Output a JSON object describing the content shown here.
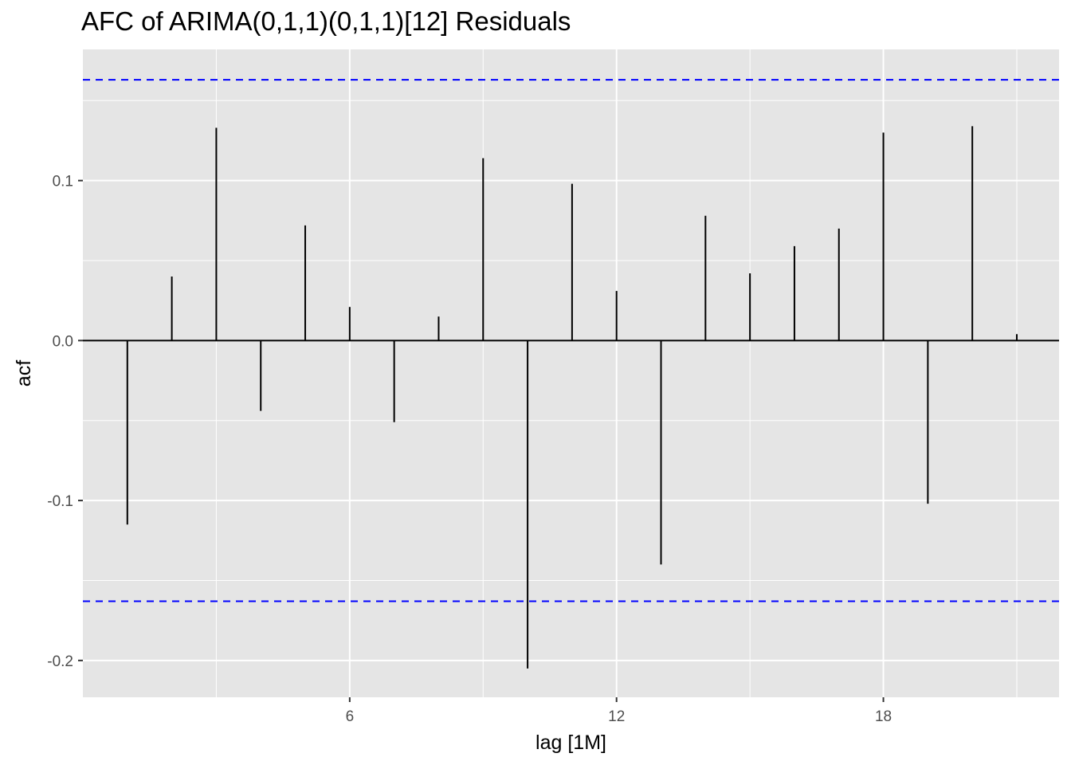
{
  "chart_data": {
    "type": "bar",
    "title": "AFC of ARIMA(0,1,1)(0,1,1)[12] Residuals",
    "xlabel": "lag [1M]",
    "ylabel": "acf",
    "x": [
      1,
      2,
      3,
      4,
      5,
      6,
      7,
      8,
      9,
      10,
      11,
      12,
      13,
      14,
      15,
      16,
      17,
      18,
      19,
      20,
      21
    ],
    "values": [
      -0.115,
      0.04,
      0.133,
      -0.044,
      0.072,
      0.021,
      -0.051,
      0.015,
      0.114,
      -0.205,
      0.098,
      0.031,
      -0.14,
      0.078,
      0.042,
      0.059,
      0.07,
      0.13,
      -0.102,
      0.134,
      0.004
    ],
    "x_ticks": [
      6,
      12,
      18
    ],
    "x_tick_labels": [
      "6",
      "12",
      "18"
    ],
    "y_ticks": [
      -0.2,
      -0.1,
      0.0,
      0.1
    ],
    "y_tick_labels": [
      "-0.2",
      "-0.1",
      "0.0",
      "0.1"
    ],
    "xlim": [
      0,
      21.95
    ],
    "ylim": [
      -0.223,
      0.182
    ],
    "confidence_bound": 0.163,
    "grid": true,
    "colors": {
      "panel_background": "#e5e5e5",
      "grid": "#ffffff",
      "bars": "#000000",
      "confidence_lines": "#0000ff",
      "tick_labels": "#4d4d4d"
    }
  }
}
